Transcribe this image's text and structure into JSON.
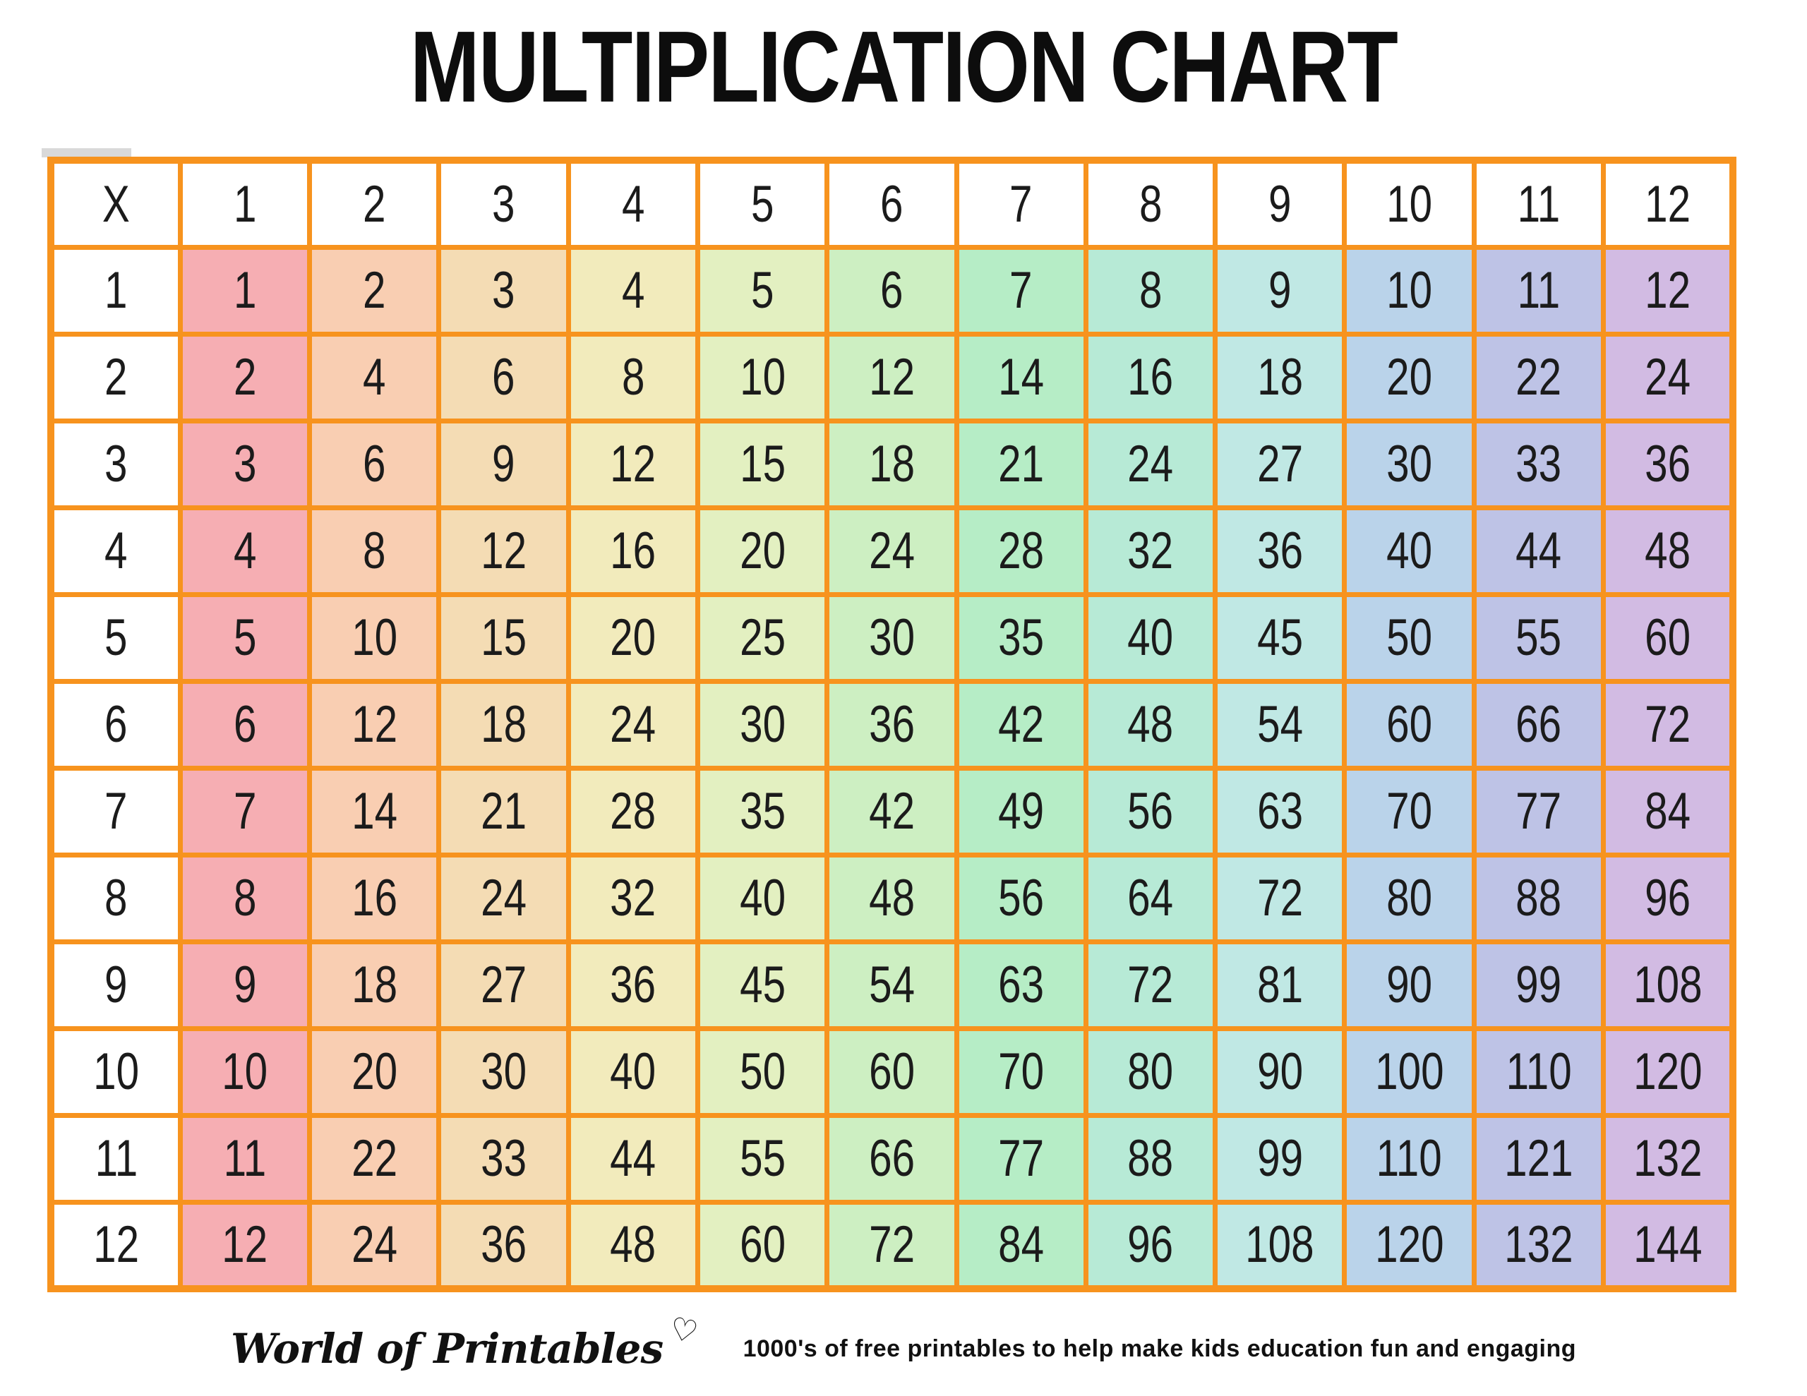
{
  "title": "MULTIPLICATION CHART",
  "colors": {
    "grid_border": "#F7931E",
    "page_background": "#FFFFFF",
    "text": "#1B1B1B",
    "gray_strip": "#D9D9D9"
  },
  "table": {
    "corner_label": "X",
    "header_bg": "#FFFFFF",
    "border_color": "#F7931E",
    "column_headers": [
      "1",
      "2",
      "3",
      "4",
      "5",
      "6",
      "7",
      "8",
      "9",
      "10",
      "11",
      "12"
    ],
    "column_colors": [
      "#F6AEB3",
      "#F9CEB2",
      "#F4DCB4",
      "#F2EBBC",
      "#E3F0C1",
      "#CDEFC2",
      "#B6EDC6",
      "#B7EAD6",
      "#C0E8E4",
      "#BAD3EA",
      "#BEC3E6",
      "#D2BBE3"
    ],
    "rows": [
      {
        "header": "1",
        "values": [
          1,
          2,
          3,
          4,
          5,
          6,
          7,
          8,
          9,
          10,
          11,
          12
        ]
      },
      {
        "header": "2",
        "values": [
          2,
          4,
          6,
          8,
          10,
          12,
          14,
          16,
          18,
          20,
          22,
          24
        ]
      },
      {
        "header": "3",
        "values": [
          3,
          6,
          9,
          12,
          15,
          18,
          21,
          24,
          27,
          30,
          33,
          36
        ]
      },
      {
        "header": "4",
        "values": [
          4,
          8,
          12,
          16,
          20,
          24,
          28,
          32,
          36,
          40,
          44,
          48
        ]
      },
      {
        "header": "5",
        "values": [
          5,
          10,
          15,
          20,
          25,
          30,
          35,
          40,
          45,
          50,
          55,
          60
        ]
      },
      {
        "header": "6",
        "values": [
          6,
          12,
          18,
          24,
          30,
          36,
          42,
          48,
          54,
          60,
          66,
          72
        ]
      },
      {
        "header": "7",
        "values": [
          7,
          14,
          21,
          28,
          35,
          42,
          49,
          56,
          63,
          70,
          77,
          84
        ]
      },
      {
        "header": "8",
        "values": [
          8,
          16,
          24,
          32,
          40,
          48,
          56,
          64,
          72,
          80,
          88,
          96
        ]
      },
      {
        "header": "9",
        "values": [
          9,
          18,
          27,
          36,
          45,
          54,
          63,
          72,
          81,
          90,
          99,
          108
        ]
      },
      {
        "header": "10",
        "values": [
          10,
          20,
          30,
          40,
          50,
          60,
          70,
          80,
          90,
          100,
          110,
          120
        ]
      },
      {
        "header": "11",
        "values": [
          11,
          22,
          33,
          44,
          55,
          66,
          77,
          88,
          99,
          110,
          121,
          132
        ]
      },
      {
        "header": "12",
        "values": [
          12,
          24,
          36,
          48,
          60,
          72,
          84,
          96,
          108,
          120,
          132,
          144
        ]
      }
    ]
  },
  "footer": {
    "logo_text": "World of Printables",
    "heart_icon": "♡",
    "tagline": "1000's of free printables to help make kids education fun and engaging"
  }
}
